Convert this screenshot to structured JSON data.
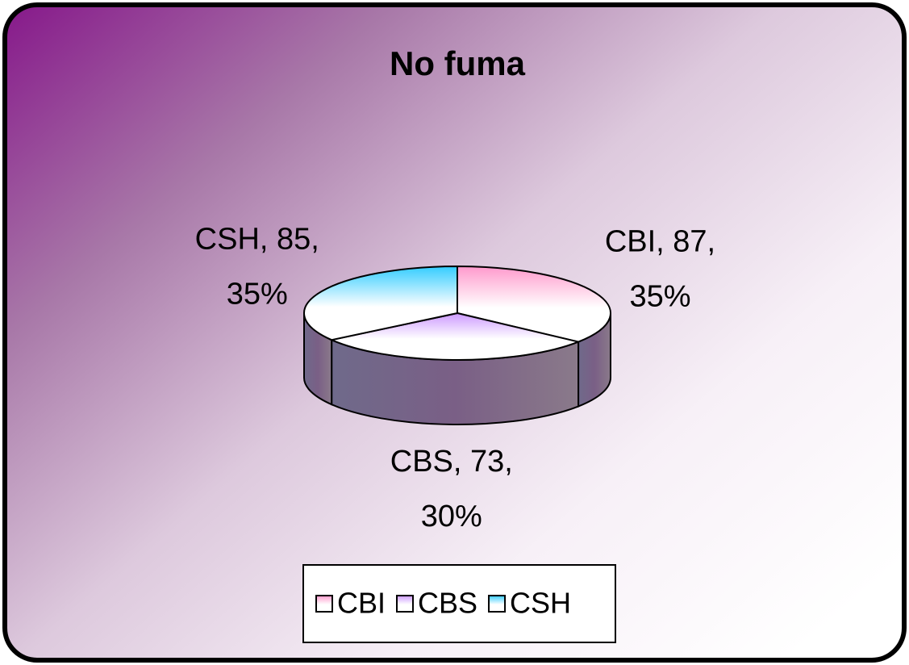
{
  "chart_data": {
    "type": "pie",
    "title": "No fuma",
    "categories": [
      "CBI",
      "CBS",
      "CSH"
    ],
    "values": [
      87,
      73,
      85
    ],
    "value_labels": [
      [
        "CBI, 87,",
        "35%"
      ],
      [
        "CBS, 73,",
        "30%"
      ],
      [
        "CSH, 85,",
        "35%"
      ]
    ],
    "colors": [
      "#ff99cc",
      "#cc99ff",
      "#33ccff"
    ],
    "legend": "bottom"
  }
}
